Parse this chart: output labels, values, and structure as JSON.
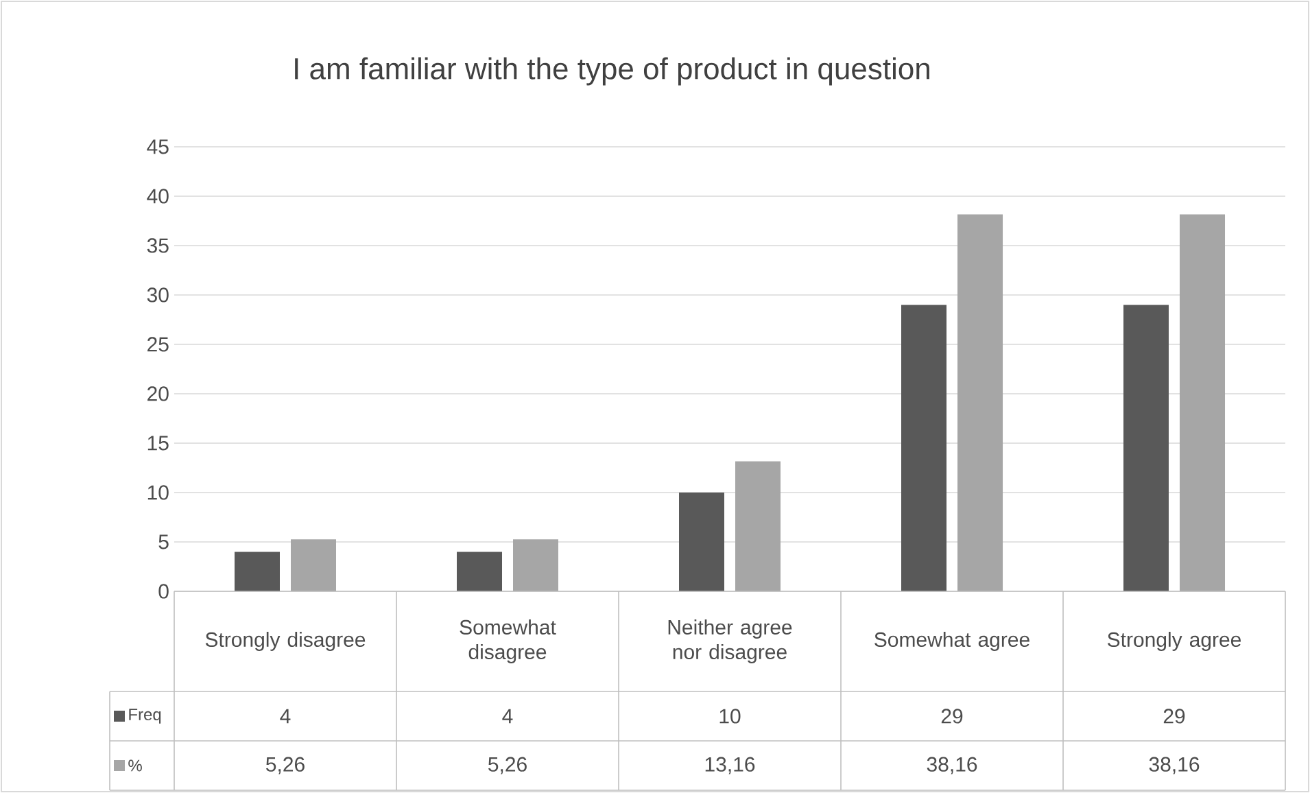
{
  "chart_data": {
    "type": "bar",
    "title": "I am familiar with the type of product in question",
    "categories": [
      "Strongly disagree",
      "Somewhat disagree",
      "Neither agree nor disagree",
      "Somewhat agree",
      "Strongly agree"
    ],
    "series": [
      {
        "name": "Freq",
        "color": "#595959",
        "values": [
          4,
          4,
          10,
          29,
          29
        ],
        "value_labels": [
          "4",
          "4",
          "10",
          "29",
          "29"
        ]
      },
      {
        "name": "%",
        "color": "#a6a6a6",
        "values": [
          5.26,
          5.26,
          13.16,
          38.16,
          38.16
        ],
        "value_labels": [
          "5,26",
          "5,26",
          "13,16",
          "38,16",
          "38,16"
        ]
      }
    ],
    "ylim": [
      0,
      45
    ],
    "yticks": [
      0,
      5,
      10,
      15,
      20,
      25,
      30,
      35,
      40,
      45
    ],
    "grid": "y",
    "legend": "bottom left"
  }
}
